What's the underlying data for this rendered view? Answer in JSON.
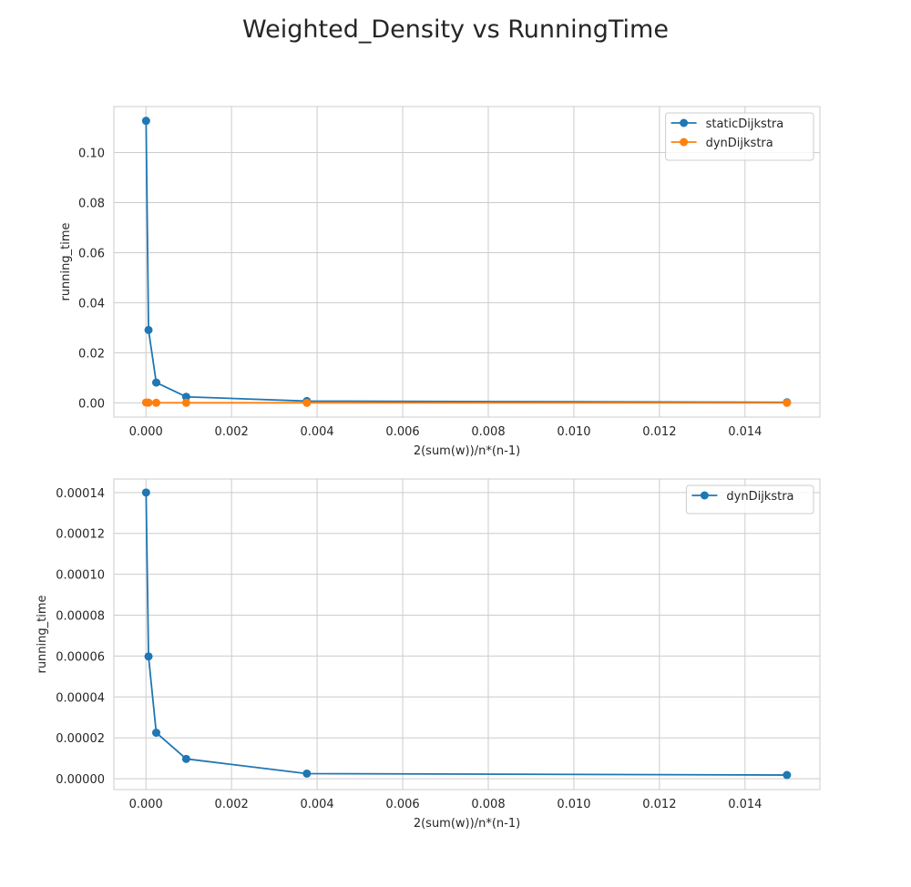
{
  "figure": {
    "title": "Weighted_Density vs RunningTime"
  },
  "chart_data": [
    {
      "type": "line",
      "xlabel": "2(sum(w))/n*(n-1)",
      "ylabel": "running_time",
      "xlim": [
        -0.00075,
        0.01575
      ],
      "ylim": [
        -0.0057,
        0.1184
      ],
      "xticks": [
        0.0,
        0.002,
        0.004,
        0.006,
        0.008,
        0.01,
        0.012,
        0.014
      ],
      "xtick_labels": [
        "0.000",
        "0.002",
        "0.004",
        "0.006",
        "0.008",
        "0.010",
        "0.012",
        "0.014"
      ],
      "yticks": [
        0.0,
        0.02,
        0.04,
        0.06,
        0.08,
        0.1
      ],
      "ytick_labels": [
        "0.00",
        "0.02",
        "0.04",
        "0.06",
        "0.08",
        "0.10"
      ],
      "grid": true,
      "legend": "top-right",
      "series": [
        {
          "name": "staticDijkstra",
          "color": "#1f77b4",
          "x": [
            2.5e-06,
            6e-05,
            0.00024,
            0.00094,
            0.00376,
            0.01498
          ],
          "y": [
            0.1127,
            0.0291,
            0.0081,
            0.0024,
            0.0007,
            0.0002
          ]
        },
        {
          "name": "dynDijkstra",
          "color": "#ff7f0e",
          "x": [
            2.5e-06,
            6e-05,
            0.00024,
            0.00094,
            0.00376,
            0.01498
          ],
          "y": [
            0.00014,
            6e-05,
            2.2e-05,
            9.5e-06,
            2.2e-06,
            1.6e-06
          ]
        }
      ]
    },
    {
      "type": "line",
      "xlabel": "2(sum(w))/n*(n-1)",
      "ylabel": "running_time",
      "xlim": [
        -0.00075,
        0.01575
      ],
      "ylim": [
        -5.3e-06,
        0.0001466
      ],
      "xticks": [
        0.0,
        0.002,
        0.004,
        0.006,
        0.008,
        0.01,
        0.012,
        0.014
      ],
      "xtick_labels": [
        "0.000",
        "0.002",
        "0.004",
        "0.006",
        "0.008",
        "0.010",
        "0.012",
        "0.014"
      ],
      "yticks": [
        0.0,
        2e-05,
        4e-05,
        6e-05,
        8e-05,
        0.0001,
        0.00012,
        0.00014
      ],
      "ytick_labels": [
        "0.00000",
        "0.00002",
        "0.00004",
        "0.00006",
        "0.00008",
        "0.00010",
        "0.00012",
        "0.00014"
      ],
      "grid": true,
      "legend": "top-right",
      "series": [
        {
          "name": "dynDijkstra",
          "color": "#1f77b4",
          "x": [
            2.5e-06,
            6e-05,
            0.00024,
            0.00094,
            0.00376,
            0.01498
          ],
          "y": [
            0.00014,
            5.98e-05,
            2.25e-05,
            9.7e-06,
            2.5e-06,
            1.8e-06
          ]
        }
      ]
    }
  ]
}
